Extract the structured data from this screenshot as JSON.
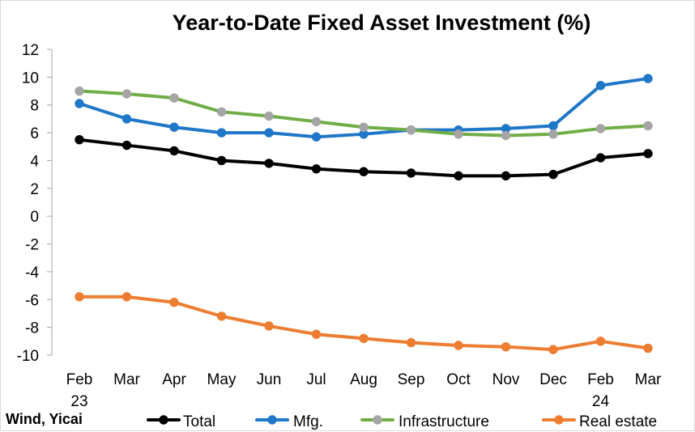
{
  "chart_data": {
    "type": "line",
    "title": "Year-to-Date Fixed Asset Investment (%)",
    "source_note": "Wind, Yicai",
    "categories": [
      "Feb 23",
      "Mar",
      "Apr",
      "May",
      "Jun",
      "Jul",
      "Aug",
      "Sep",
      "Oct",
      "Nov",
      "Dec",
      "Feb 24",
      "Mar"
    ],
    "x_ticks": [
      {
        "line1": "Feb",
        "line2": "23"
      },
      {
        "line1": "Mar",
        "line2": ""
      },
      {
        "line1": "Apr",
        "line2": ""
      },
      {
        "line1": "May",
        "line2": ""
      },
      {
        "line1": "Jun",
        "line2": ""
      },
      {
        "line1": "Jul",
        "line2": ""
      },
      {
        "line1": "Aug",
        "line2": ""
      },
      {
        "line1": "Sep",
        "line2": ""
      },
      {
        "line1": "Oct",
        "line2": ""
      },
      {
        "line1": "Nov",
        "line2": ""
      },
      {
        "line1": "Dec",
        "line2": ""
      },
      {
        "line1": "Feb",
        "line2": "24"
      },
      {
        "line1": "Mar",
        "line2": ""
      }
    ],
    "y_ticks": [
      "12",
      "10",
      "8",
      "6",
      "4",
      "2",
      "0",
      "-2",
      "-4",
      "-6",
      "-8",
      "-10"
    ],
    "ylim": [
      -10,
      12
    ],
    "grid": false,
    "legend_position": "bottom",
    "series": [
      {
        "name": "Total",
        "line_color": "#000000",
        "marker_color": "#000000",
        "values": [
          5.5,
          5.1,
          4.7,
          4.0,
          3.8,
          3.4,
          3.2,
          3.1,
          2.9,
          2.9,
          3.0,
          4.2,
          4.5
        ]
      },
      {
        "name": "Mfg.",
        "line_color": "#1f77c8",
        "marker_color": "#1f77c8",
        "values": [
          8.1,
          7.0,
          6.4,
          6.0,
          6.0,
          5.7,
          5.9,
          6.2,
          6.2,
          6.3,
          6.5,
          9.4,
          9.9
        ]
      },
      {
        "name": "Infrastructure",
        "line_color": "#70ad47",
        "marker_color": "#a5a5a5",
        "values": [
          9.0,
          8.8,
          8.5,
          7.5,
          7.2,
          6.8,
          6.4,
          6.2,
          5.9,
          5.8,
          5.9,
          6.3,
          6.5
        ]
      },
      {
        "name": "Real estate",
        "line_color": "#ed7d31",
        "marker_color": "#ed7d31",
        "values": [
          -5.8,
          -5.8,
          -6.2,
          -7.2,
          -7.9,
          -8.5,
          -8.8,
          -9.1,
          -9.3,
          -9.4,
          -9.6,
          -9.0,
          -9.5
        ]
      }
    ]
  }
}
